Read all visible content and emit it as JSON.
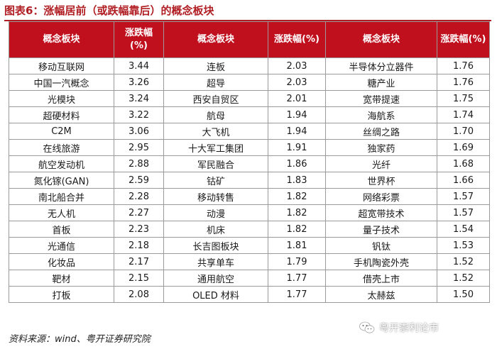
{
  "title": "图表6：涨幅居前（或跌幅靠后）的概念板块",
  "header": {
    "col_concept": "概念板块",
    "col_change": "涨跌幅(%)"
  },
  "rows": [
    [
      "移动互联网",
      "3.44",
      "连板",
      "2.03",
      "半导体分立器件",
      "1.76"
    ],
    [
      "中国一汽概念",
      "3.26",
      "超导",
      "2.03",
      "糖产业",
      "1.76"
    ],
    [
      "光模块",
      "3.24",
      "西安自贸区",
      "2.01",
      "宽带提速",
      "1.75"
    ],
    [
      "超硬材料",
      "3.22",
      "航母",
      "1.94",
      "海航系",
      "1.74"
    ],
    [
      "C2M",
      "3.06",
      "大飞机",
      "1.94",
      "丝绸之路",
      "1.70"
    ],
    [
      "在线旅游",
      "2.95",
      "十大军工集团",
      "1.91",
      "独家药",
      "1.69"
    ],
    [
      "航空发动机",
      "2.88",
      "军民融合",
      "1.86",
      "光纤",
      "1.68"
    ],
    [
      "氮化镓(GAN)",
      "2.59",
      "钴矿",
      "1.83",
      "世界杯",
      "1.66"
    ],
    [
      "南北船合并",
      "2.28",
      "移动转售",
      "1.82",
      "网络彩票",
      "1.57"
    ],
    [
      "无人机",
      "2.27",
      "动漫",
      "1.82",
      "超宽带技术",
      "1.57"
    ],
    [
      "首板",
      "2.23",
      "机床",
      "1.82",
      "量子技术",
      "1.54"
    ],
    [
      "光通信",
      "2.18",
      "长吉图板块",
      "1.81",
      "钒钛",
      "1.53"
    ],
    [
      "化妆品",
      "2.17",
      "共享单车",
      "1.79",
      "手机陶瓷外壳",
      "1.52"
    ],
    [
      "靶材",
      "2.15",
      "通用航空",
      "1.77",
      "借壳上市",
      "1.52"
    ],
    [
      "打板",
      "2.08",
      "OLED 材料",
      "1.77",
      "太赫兹",
      "1.50"
    ]
  ],
  "footer": "资料来源：wind、粤开证券研究院",
  "watermark": {
    "text": "粤开崇利论市",
    "icon": "wechat-icon"
  },
  "colors": {
    "header_bg": "#c0101e",
    "title": "#b01e23"
  }
}
